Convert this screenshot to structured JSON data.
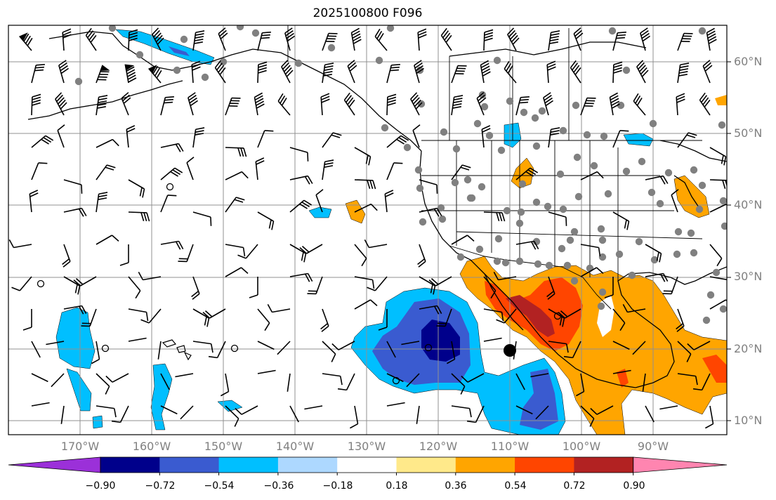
{
  "title": "2025100800 F096",
  "lat_labels": [
    "60°N",
    "50°N",
    "40°N",
    "30°N",
    "20°N",
    "10°N"
  ],
  "lon_labels": [
    "170°W",
    "160°W",
    "150°W",
    "140°W",
    "130°W",
    "120°W",
    "110°W",
    "100°W",
    "90°W"
  ],
  "colorbar": {
    "ticks": [
      "−0.90",
      "−0.72",
      "−0.54",
      "−0.36",
      "−0.18",
      "0.18",
      "0.36",
      "0.54",
      "0.72",
      "0.90"
    ],
    "colors": [
      "#9b30d9",
      "#00008b",
      "#3a5bd0",
      "#00bfff",
      "#add8ff",
      "#ffffff",
      "#ffe98a",
      "#ffa500",
      "#ff4500",
      "#b22222",
      "#ff85b0"
    ]
  },
  "chart_data": {
    "type": "heatmap",
    "title": "2025100800 F096",
    "lon_range": [
      -180,
      -80
    ],
    "lat_range": [
      8,
      65
    ],
    "levels": [
      -0.9,
      -0.72,
      -0.54,
      -0.36,
      -0.18,
      0.18,
      0.36,
      0.54,
      0.72,
      0.9
    ]
  }
}
